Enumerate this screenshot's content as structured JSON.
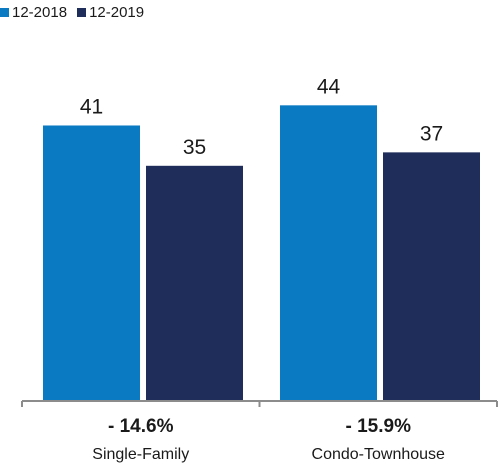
{
  "legend": {
    "series_1": "12-2018",
    "series_2": "12-2019"
  },
  "colors": {
    "series_1": "#0a7bc2",
    "series_2": "#1f2d5a",
    "axis": "#8c8c8c",
    "text": "#1a1a1a"
  },
  "chart_data": {
    "type": "bar",
    "categories": [
      "Single-Family",
      "Condo-Townhouse"
    ],
    "series": [
      {
        "name": "12-2018",
        "values": [
          41,
          44
        ]
      },
      {
        "name": "12-2019",
        "values": [
          35,
          37
        ]
      }
    ],
    "value_labels": [
      [
        "41",
        "44"
      ],
      [
        "35",
        "37"
      ]
    ],
    "change_labels": [
      "- 14.6%",
      "- 15.9%"
    ],
    "ylim": [
      0,
      50
    ],
    "grid": false,
    "legend_position": "top-left"
  }
}
